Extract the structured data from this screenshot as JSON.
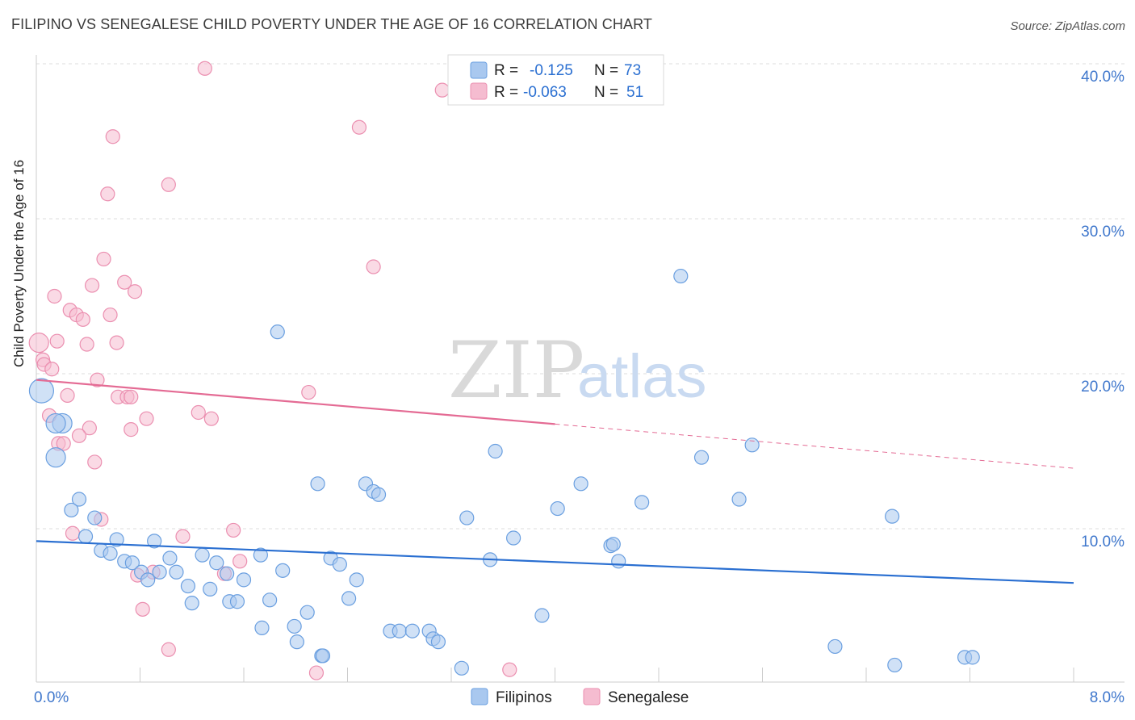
{
  "title": "FILIPINO VS SENEGALESE CHILD POVERTY UNDER THE AGE OF 16 CORRELATION CHART",
  "source": "Source: ZipAtlas.com",
  "watermark": {
    "zip": "ZIP",
    "atlas": "atlas"
  },
  "colors": {
    "blue_fill": "#a9c8ef",
    "blue_stroke": "#6a9fe0",
    "blue_line": "#2a6fd1",
    "pink_fill": "#f5bcd0",
    "pink_stroke": "#eb8fb0",
    "pink_line": "#e46b94",
    "axis_text": "#3f77cc",
    "grid": "#dddddd"
  },
  "legend": {
    "rows": [
      {
        "r_label": "R =",
        "r_value": "-0.125",
        "n_label": "N =",
        "n_value": "73"
      },
      {
        "r_label": "R =",
        "r_value": "-0.063",
        "n_label": "N =",
        "n_value": "51"
      }
    ]
  },
  "chart_data": {
    "type": "scatter",
    "title": "FILIPINO VS SENEGALESE CHILD POVERTY UNDER THE AGE OF 16 CORRELATION CHART",
    "xlabel": "",
    "ylabel": "Child Poverty Under the Age of 16",
    "xlim": [
      0,
      8
    ],
    "ylim": [
      0,
      40
    ],
    "x_tick_labels": [
      "0.0%",
      "8.0%"
    ],
    "y_ticks": [
      10,
      20,
      30,
      40
    ],
    "y_tick_labels": [
      "10.0%",
      "20.0%",
      "30.0%",
      "40.0%"
    ],
    "grid": true,
    "legend_position": "bottom-center",
    "series": [
      {
        "name": "Filipinos",
        "r": -0.125,
        "n": 73,
        "trend": {
          "x0": 0,
          "y0": 9.2,
          "x1": 8,
          "y1": 6.5,
          "dashed_from": null
        },
        "points": [
          [
            0.04,
            18.9,
            3
          ],
          [
            0.2,
            16.8,
            2
          ],
          [
            0.15,
            16.8,
            2
          ],
          [
            0.15,
            14.6,
            2
          ],
          [
            0.33,
            11.9,
            1
          ],
          [
            0.27,
            11.2,
            1
          ],
          [
            0.45,
            10.7,
            1
          ],
          [
            0.38,
            9.5,
            1
          ],
          [
            0.62,
            9.3,
            1
          ],
          [
            0.91,
            9.2,
            1
          ],
          [
            0.5,
            8.6,
            1
          ],
          [
            0.57,
            8.4,
            1
          ],
          [
            0.68,
            7.9,
            1
          ],
          [
            0.74,
            7.8,
            1
          ],
          [
            1.03,
            8.1,
            1
          ],
          [
            1.28,
            8.3,
            1
          ],
          [
            1.73,
            8.3,
            1
          ],
          [
            1.39,
            7.8,
            1
          ],
          [
            0.81,
            7.2,
            1
          ],
          [
            0.95,
            7.2,
            1
          ],
          [
            1.08,
            7.2,
            1
          ],
          [
            1.47,
            7.1,
            1
          ],
          [
            1.9,
            7.3,
            1
          ],
          [
            2.27,
            8.1,
            1
          ],
          [
            2.34,
            7.7,
            1
          ],
          [
            0.86,
            6.7,
            1
          ],
          [
            1.17,
            6.3,
            1
          ],
          [
            1.6,
            6.7,
            1
          ],
          [
            2.47,
            6.7,
            1
          ],
          [
            1.34,
            6.1,
            1
          ],
          [
            1.2,
            5.2,
            1
          ],
          [
            1.49,
            5.3,
            1
          ],
          [
            1.55,
            5.3,
            1
          ],
          [
            1.8,
            5.4,
            1
          ],
          [
            2.41,
            5.5,
            1
          ],
          [
            2.09,
            4.6,
            1
          ],
          [
            1.74,
            3.6,
            1
          ],
          [
            1.99,
            3.7,
            1
          ],
          [
            2.01,
            2.7,
            1
          ],
          [
            2.73,
            3.4,
            1
          ],
          [
            2.8,
            3.4,
            1
          ],
          [
            2.9,
            3.4,
            1
          ],
          [
            3.03,
            3.4,
            1
          ],
          [
            3.06,
            2.9,
            1
          ],
          [
            3.1,
            2.7,
            1
          ],
          [
            2.2,
            1.8,
            1
          ],
          [
            3.28,
            1.0,
            1
          ],
          [
            1.86,
            22.7,
            1
          ],
          [
            2.17,
            12.9,
            1
          ],
          [
            2.54,
            12.9,
            1
          ],
          [
            2.6,
            12.4,
            1
          ],
          [
            2.64,
            12.2,
            1
          ],
          [
            3.32,
            10.7,
            1
          ],
          [
            3.54,
            15.0,
            1
          ],
          [
            3.5,
            8.0,
            1
          ],
          [
            3.68,
            9.4,
            1
          ],
          [
            3.9,
            4.4,
            1
          ],
          [
            4.02,
            11.3,
            1
          ],
          [
            4.2,
            12.9,
            1
          ],
          [
            4.43,
            8.9,
            1
          ],
          [
            4.45,
            9.0,
            1
          ],
          [
            4.49,
            7.9,
            1
          ],
          [
            4.67,
            11.7,
            1
          ],
          [
            4.97,
            26.3,
            1
          ],
          [
            5.13,
            14.6,
            1
          ],
          [
            5.42,
            11.9,
            1
          ],
          [
            5.52,
            15.4,
            1
          ],
          [
            6.16,
            2.4,
            1
          ],
          [
            6.6,
            10.8,
            1
          ],
          [
            6.62,
            1.2,
            1
          ],
          [
            7.16,
            1.7,
            1
          ],
          [
            7.22,
            1.7,
            1
          ],
          [
            2.21,
            1.8,
            1
          ]
        ]
      },
      {
        "name": "Senegalese",
        "r": -0.063,
        "n": 51,
        "trend": {
          "x0": 0,
          "y0": 19.6,
          "x1": 8,
          "y1": 13.9,
          "dashed_from": 4.0
        },
        "points": [
          [
            1.3,
            39.7,
            1
          ],
          [
            3.13,
            38.3,
            1
          ],
          [
            2.49,
            35.9,
            1
          ],
          [
            0.59,
            35.3,
            1
          ],
          [
            0.55,
            31.6,
            1
          ],
          [
            1.02,
            32.2,
            1
          ],
          [
            2.6,
            26.9,
            1
          ],
          [
            0.52,
            27.4,
            1
          ],
          [
            0.43,
            25.7,
            1
          ],
          [
            0.68,
            25.9,
            1
          ],
          [
            0.76,
            25.3,
            1
          ],
          [
            0.14,
            25.0,
            1
          ],
          [
            0.26,
            24.1,
            1
          ],
          [
            0.31,
            23.8,
            1
          ],
          [
            0.36,
            23.5,
            1
          ],
          [
            0.57,
            23.8,
            1
          ],
          [
            0.02,
            22.0,
            2
          ],
          [
            0.16,
            22.1,
            1
          ],
          [
            0.39,
            21.9,
            1
          ],
          [
            0.62,
            22.0,
            1
          ],
          [
            0.05,
            20.9,
            1
          ],
          [
            0.06,
            20.6,
            1
          ],
          [
            0.12,
            20.3,
            1
          ],
          [
            0.47,
            19.6,
            1
          ],
          [
            0.24,
            18.6,
            1
          ],
          [
            0.63,
            18.5,
            1
          ],
          [
            0.7,
            18.5,
            1
          ],
          [
            0.73,
            18.5,
            1
          ],
          [
            2.1,
            18.8,
            1
          ],
          [
            1.25,
            17.5,
            1
          ],
          [
            1.35,
            17.1,
            1
          ],
          [
            0.85,
            17.1,
            1
          ],
          [
            0.1,
            17.3,
            1
          ],
          [
            0.41,
            16.5,
            1
          ],
          [
            0.73,
            16.4,
            1
          ],
          [
            0.33,
            16.0,
            1
          ],
          [
            0.17,
            15.5,
            1
          ],
          [
            0.21,
            15.5,
            1
          ],
          [
            0.45,
            14.3,
            1
          ],
          [
            0.5,
            10.6,
            1
          ],
          [
            1.52,
            9.9,
            1
          ],
          [
            0.28,
            9.7,
            1
          ],
          [
            1.13,
            9.5,
            1
          ],
          [
            1.57,
            7.9,
            1
          ],
          [
            0.78,
            7.0,
            1
          ],
          [
            0.9,
            7.2,
            1
          ],
          [
            1.45,
            7.1,
            1
          ],
          [
            0.82,
            4.8,
            1
          ],
          [
            1.02,
            2.2,
            1
          ],
          [
            2.16,
            0.7,
            1
          ],
          [
            3.65,
            0.9,
            1
          ]
        ]
      }
    ]
  }
}
